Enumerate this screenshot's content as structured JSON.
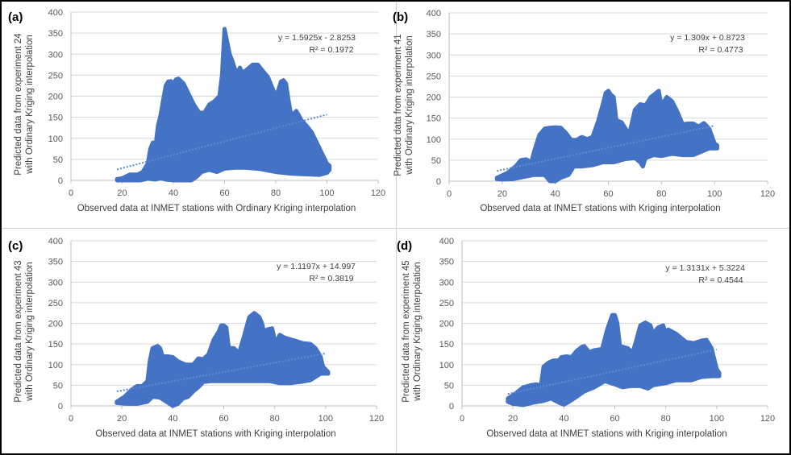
{
  "chart_data": [
    {
      "type": "scatter",
      "panel_label": "(a)",
      "xlabel": "Observed data at INMET  stations with Ordinary Kriging interpolation",
      "ylabel_lines": [
        "Predicted data from  experiment 24",
        "with Ordinary Kriging interpolation"
      ],
      "xlim": [
        0,
        120
      ],
      "ylim": [
        0,
        400
      ],
      "xticks": [
        0,
        20,
        40,
        60,
        80,
        100,
        120
      ],
      "yticks": [
        0,
        50,
        100,
        150,
        200,
        250,
        300,
        350,
        400
      ],
      "grid": true,
      "marker_color": "#4472C4",
      "trendline": {
        "slope": 1.5925,
        "intercept": -2.8253,
        "x_range": [
          18,
          100
        ],
        "equation": "y = 1.5925x - 2.8253",
        "r2": "R² = 0.1972"
      },
      "envelope_upper": [
        [
          18,
          3
        ],
        [
          20,
          5
        ],
        [
          23,
          14
        ],
        [
          26,
          14
        ],
        [
          28,
          20
        ],
        [
          30,
          40
        ],
        [
          31,
          75
        ],
        [
          32,
          90
        ],
        [
          33,
          80
        ],
        [
          34,
          130
        ],
        [
          35,
          155
        ],
        [
          36,
          190
        ],
        [
          37,
          225
        ],
        [
          38,
          235
        ],
        [
          39,
          236
        ],
        [
          40,
          230
        ],
        [
          41,
          240
        ],
        [
          42,
          242
        ],
        [
          44,
          230
        ],
        [
          46,
          205
        ],
        [
          48,
          180
        ],
        [
          50,
          162
        ],
        [
          52,
          160
        ],
        [
          54,
          180
        ],
        [
          56,
          188
        ],
        [
          58,
          200
        ],
        [
          59,
          250
        ],
        [
          60,
          360
        ],
        [
          61,
          330
        ],
        [
          62,
          300
        ],
        [
          63,
          285
        ],
        [
          64,
          265
        ],
        [
          65,
          258
        ],
        [
          66,
          268
        ],
        [
          67,
          255
        ],
        [
          69,
          265
        ],
        [
          71,
          275
        ],
        [
          73,
          275
        ],
        [
          75,
          260
        ],
        [
          77,
          245
        ],
        [
          79,
          215
        ],
        [
          80,
          200
        ],
        [
          81,
          215
        ],
        [
          82,
          235
        ],
        [
          83,
          238
        ],
        [
          84,
          230
        ],
        [
          85,
          190
        ],
        [
          86,
          155
        ],
        [
          87,
          158
        ],
        [
          88,
          165
        ],
        [
          89,
          155
        ],
        [
          90,
          143
        ],
        [
          92,
          130
        ],
        [
          94,
          115
        ],
        [
          96,
          90
        ],
        [
          98,
          65
        ],
        [
          100,
          40
        ],
        [
          101,
          35
        ]
      ],
      "envelope_lower": [
        [
          101,
          25
        ],
        [
          100,
          18
        ],
        [
          97,
          13
        ],
        [
          94,
          14
        ],
        [
          90,
          15
        ],
        [
          86,
          16
        ],
        [
          80,
          20
        ],
        [
          74,
          27
        ],
        [
          68,
          30
        ],
        [
          64,
          30
        ],
        [
          60,
          28
        ],
        [
          57,
          20
        ],
        [
          54,
          25
        ],
        [
          51,
          20
        ],
        [
          49,
          8
        ],
        [
          47,
          0
        ],
        [
          44,
          0
        ],
        [
          40,
          0
        ],
        [
          37,
          2
        ],
        [
          35,
          5
        ],
        [
          33,
          2
        ],
        [
          30,
          4
        ],
        [
          27,
          0
        ],
        [
          22,
          0
        ],
        [
          18,
          0
        ]
      ]
    },
    {
      "type": "scatter",
      "panel_label": "(b)",
      "xlabel": "Observed data at INMET  stations with Kriging interpolation",
      "ylabel_lines": [
        "Predicted data from  experiment 41",
        "with Ordinary Kriging interpolation"
      ],
      "xlim": [
        0,
        120
      ],
      "ylim": [
        0,
        400
      ],
      "xticks": [
        0,
        20,
        40,
        60,
        80,
        100,
        120
      ],
      "yticks": [
        0,
        50,
        100,
        150,
        200,
        250,
        300,
        350,
        400
      ],
      "grid": true,
      "marker_color": "#4472C4",
      "trendline": {
        "slope": 1.309,
        "intercept": 0.8723,
        "x_range": [
          18,
          100
        ],
        "equation": "y = 1.309x + 0.8723",
        "r2": "R² = 0.4773"
      },
      "envelope_upper": [
        [
          18,
          8
        ],
        [
          22,
          20
        ],
        [
          25,
          35
        ],
        [
          27,
          50
        ],
        [
          29,
          52
        ],
        [
          31,
          45
        ],
        [
          32,
          70
        ],
        [
          34,
          110
        ],
        [
          36,
          125
        ],
        [
          38,
          127
        ],
        [
          40,
          128
        ],
        [
          42,
          127
        ],
        [
          44,
          115
        ],
        [
          46,
          98
        ],
        [
          48,
          98
        ],
        [
          50,
          105
        ],
        [
          52,
          100
        ],
        [
          54,
          105
        ],
        [
          56,
          140
        ],
        [
          58,
          185
        ],
        [
          59,
          210
        ],
        [
          60,
          215
        ],
        [
          61,
          205
        ],
        [
          62,
          200
        ],
        [
          63,
          145
        ],
        [
          65,
          140
        ],
        [
          67,
          120
        ],
        [
          68,
          115
        ],
        [
          70,
          170
        ],
        [
          72,
          183
        ],
        [
          74,
          180
        ],
        [
          76,
          200
        ],
        [
          78,
          210
        ],
        [
          79,
          215
        ],
        [
          80,
          180
        ],
        [
          81,
          190
        ],
        [
          82,
          200
        ],
        [
          84,
          190
        ],
        [
          86,
          165
        ],
        [
          88,
          135
        ],
        [
          90,
          137
        ],
        [
          92,
          137
        ],
        [
          94,
          130
        ],
        [
          96,
          138
        ],
        [
          98,
          125
        ],
        [
          100,
          90
        ],
        [
          101,
          85
        ]
      ],
      "envelope_lower": [
        [
          101,
          78
        ],
        [
          98,
          78
        ],
        [
          95,
          70
        ],
        [
          92,
          62
        ],
        [
          88,
          62
        ],
        [
          84,
          65
        ],
        [
          80,
          60
        ],
        [
          77,
          62
        ],
        [
          74,
          55
        ],
        [
          73,
          35
        ],
        [
          72,
          45
        ],
        [
          70,
          55
        ],
        [
          66,
          52
        ],
        [
          62,
          45
        ],
        [
          58,
          45
        ],
        [
          54,
          38
        ],
        [
          50,
          35
        ],
        [
          47,
          35
        ],
        [
          45,
          15
        ],
        [
          42,
          8
        ],
        [
          40,
          0
        ],
        [
          38,
          0
        ],
        [
          36,
          15
        ],
        [
          32,
          15
        ],
        [
          28,
          10
        ],
        [
          24,
          5
        ],
        [
          20,
          4
        ],
        [
          18,
          5
        ]
      ]
    },
    {
      "type": "scatter",
      "panel_label": "(c)",
      "xlabel": "Observed data at INMET  stations with Kriging interpolation",
      "ylabel_lines": [
        "Predicted data from  experiment 43",
        "with Ordinary Kriging interpolation"
      ],
      "xlim": [
        0,
        120
      ],
      "ylim": [
        0,
        400
      ],
      "xticks": [
        0,
        20,
        40,
        60,
        80,
        100,
        120
      ],
      "yticks": [
        0,
        50,
        100,
        150,
        200,
        250,
        300,
        350,
        400
      ],
      "grid": true,
      "marker_color": "#4472C4",
      "trendline": {
        "slope": 1.1197,
        "intercept": 14.997,
        "x_range": [
          18,
          100
        ],
        "equation": "y = 1.1197x + 14.997",
        "r2": "R² = 0.3819"
      },
      "envelope_upper": [
        [
          18,
          10
        ],
        [
          21,
          22
        ],
        [
          24,
          40
        ],
        [
          26,
          48
        ],
        [
          28,
          48
        ],
        [
          30,
          60
        ],
        [
          31,
          110
        ],
        [
          32,
          140
        ],
        [
          34,
          145
        ],
        [
          35,
          140
        ],
        [
          36,
          120
        ],
        [
          38,
          120
        ],
        [
          40,
          118
        ],
        [
          42,
          108
        ],
        [
          45,
          100
        ],
        [
          48,
          100
        ],
        [
          50,
          115
        ],
        [
          52,
          113
        ],
        [
          54,
          125
        ],
        [
          56,
          160
        ],
        [
          58,
          180
        ],
        [
          59,
          195
        ],
        [
          60,
          195
        ],
        [
          61,
          190
        ],
        [
          62,
          140
        ],
        [
          64,
          140
        ],
        [
          66,
          128
        ],
        [
          68,
          170
        ],
        [
          70,
          215
        ],
        [
          72,
          225
        ],
        [
          74,
          215
        ],
        [
          75,
          200
        ],
        [
          76,
          175
        ],
        [
          77,
          185
        ],
        [
          79,
          188
        ],
        [
          80,
          160
        ],
        [
          81,
          160
        ],
        [
          82,
          172
        ],
        [
          84,
          165
        ],
        [
          88,
          158
        ],
        [
          91,
          152
        ],
        [
          94,
          150
        ],
        [
          96,
          140
        ],
        [
          98,
          120
        ],
        [
          99,
          95
        ],
        [
          101,
          82
        ]
      ],
      "envelope_lower": [
        [
          101,
          78
        ],
        [
          98,
          78
        ],
        [
          96,
          70
        ],
        [
          94,
          62
        ],
        [
          90,
          58
        ],
        [
          86,
          55
        ],
        [
          82,
          55
        ],
        [
          78,
          60
        ],
        [
          72,
          60
        ],
        [
          66,
          60
        ],
        [
          60,
          60
        ],
        [
          55,
          60
        ],
        [
          52,
          58
        ],
        [
          50,
          45
        ],
        [
          48,
          35
        ],
        [
          46,
          22
        ],
        [
          44,
          18
        ],
        [
          42,
          5
        ],
        [
          40,
          0
        ],
        [
          38,
          8
        ],
        [
          35,
          20
        ],
        [
          32,
          22
        ],
        [
          30,
          10
        ],
        [
          26,
          5
        ],
        [
          22,
          5
        ],
        [
          18,
          7
        ]
      ]
    },
    {
      "type": "scatter",
      "panel_label": "(d)",
      "xlabel": "Observed data at INMET  stations with Kriging interpolation",
      "ylabel_lines": [
        "Predicted data from  experiment 45",
        "with Ordinary Kriging interpolation"
      ],
      "xlim": [
        0,
        120
      ],
      "ylim": [
        0,
        400
      ],
      "xticks": [
        0,
        20,
        40,
        60,
        80,
        100,
        120
      ],
      "yticks": [
        0,
        50,
        100,
        150,
        200,
        250,
        300,
        350,
        400
      ],
      "grid": true,
      "marker_color": "#4472C4",
      "trendline": {
        "slope": 1.3131,
        "intercept": 5.3224,
        "x_range": [
          18,
          100
        ],
        "equation": "y = 1.3131x + 5.3224",
        "r2": "R² = 0.4544"
      },
      "envelope_upper": [
        [
          18,
          18
        ],
        [
          21,
          30
        ],
        [
          24,
          45
        ],
        [
          27,
          50
        ],
        [
          29,
          52
        ],
        [
          31,
          50
        ],
        [
          32,
          95
        ],
        [
          34,
          105
        ],
        [
          36,
          110
        ],
        [
          38,
          110
        ],
        [
          39,
          118
        ],
        [
          41,
          120
        ],
        [
          43,
          118
        ],
        [
          45,
          133
        ],
        [
          47,
          143
        ],
        [
          48,
          145
        ],
        [
          50,
          130
        ],
        [
          52,
          135
        ],
        [
          55,
          138
        ],
        [
          57,
          185
        ],
        [
          59,
          220
        ],
        [
          60,
          220
        ],
        [
          61,
          200
        ],
        [
          62,
          145
        ],
        [
          65,
          140
        ],
        [
          67,
          130
        ],
        [
          68,
          150
        ],
        [
          70,
          195
        ],
        [
          72,
          202
        ],
        [
          74,
          195
        ],
        [
          75,
          175
        ],
        [
          77,
          190
        ],
        [
          79,
          195
        ],
        [
          80,
          175
        ],
        [
          81,
          185
        ],
        [
          84,
          175
        ],
        [
          88,
          155
        ],
        [
          91,
          152
        ],
        [
          94,
          158
        ],
        [
          96,
          160
        ],
        [
          98,
          140
        ],
        [
          100,
          90
        ],
        [
          101,
          80
        ]
      ],
      "envelope_lower": [
        [
          101,
          72
        ],
        [
          98,
          72
        ],
        [
          94,
          70
        ],
        [
          90,
          62
        ],
        [
          87,
          62
        ],
        [
          84,
          62
        ],
        [
          80,
          55
        ],
        [
          75,
          50
        ],
        [
          73,
          42
        ],
        [
          70,
          48
        ],
        [
          66,
          48
        ],
        [
          63,
          45
        ],
        [
          60,
          52
        ],
        [
          56,
          60
        ],
        [
          52,
          45
        ],
        [
          48,
          35
        ],
        [
          44,
          18
        ],
        [
          42,
          10
        ],
        [
          40,
          3
        ],
        [
          38,
          8
        ],
        [
          35,
          18
        ],
        [
          32,
          12
        ],
        [
          28,
          8
        ],
        [
          24,
          2
        ],
        [
          20,
          5
        ],
        [
          18,
          10
        ]
      ]
    }
  ]
}
